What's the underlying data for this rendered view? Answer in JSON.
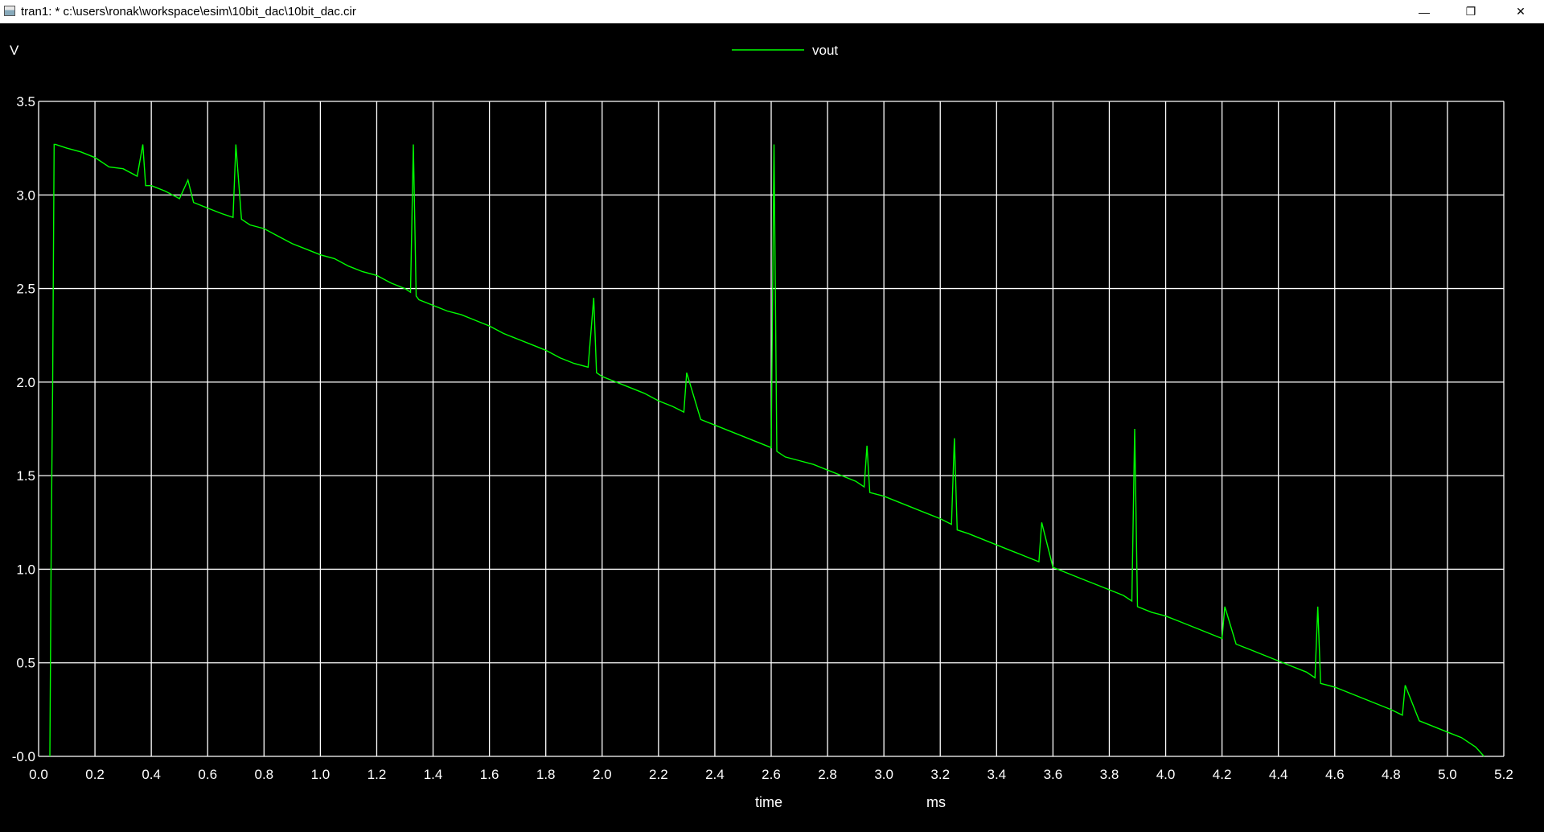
{
  "window": {
    "title": "tran1: * c:\\users\\ronak\\workspace\\esim\\10bit_dac\\10bit_dac.cir",
    "minimize_glyph": "—",
    "maximize_glyph": "❐",
    "close_glyph": "✕",
    "icon": "plot-window-icon"
  },
  "colors": {
    "background": "#000000",
    "grid": "#ffffff",
    "trace": "#00ff00",
    "text": "#ffffff"
  },
  "chart_data": {
    "type": "line",
    "ylabel": "V",
    "xlabel": "time",
    "xunit": "ms",
    "legend_position": "top-center",
    "grid": true,
    "xlim": [
      0.0,
      5.2
    ],
    "ylim": [
      0.0,
      3.5
    ],
    "x_ticks": [
      "0.0",
      "0.2",
      "0.4",
      "0.6",
      "0.8",
      "1.0",
      "1.2",
      "1.4",
      "1.6",
      "1.8",
      "2.0",
      "2.2",
      "2.4",
      "2.6",
      "2.8",
      "3.0",
      "3.2",
      "3.4",
      "3.6",
      "3.8",
      "4.0",
      "4.2",
      "4.4",
      "4.6",
      "4.8",
      "5.0",
      "5.2"
    ],
    "y_ticks": [
      "-0.0",
      "0.5",
      "1.0",
      "1.5",
      "2.0",
      "2.5",
      "3.0",
      "3.5"
    ],
    "series": [
      {
        "name": "vout",
        "color": "#00ff00",
        "x": [
          0.04,
          0.045,
          0.05,
          0.055,
          0.06,
          0.1,
          0.15,
          0.2,
          0.25,
          0.3,
          0.35,
          0.37,
          0.38,
          0.4,
          0.45,
          0.5,
          0.53,
          0.55,
          0.6,
          0.65,
          0.69,
          0.7,
          0.72,
          0.75,
          0.8,
          0.85,
          0.9,
          0.95,
          1.0,
          1.05,
          1.1,
          1.15,
          1.2,
          1.25,
          1.3,
          1.32,
          1.33,
          1.34,
          1.35,
          1.4,
          1.45,
          1.5,
          1.55,
          1.6,
          1.65,
          1.7,
          1.75,
          1.8,
          1.85,
          1.9,
          1.95,
          1.97,
          1.98,
          2.0,
          2.05,
          2.1,
          2.15,
          2.2,
          2.25,
          2.29,
          2.3,
          2.35,
          2.4,
          2.45,
          2.5,
          2.55,
          2.6,
          2.61,
          2.62,
          2.65,
          2.7,
          2.75,
          2.8,
          2.85,
          2.9,
          2.93,
          2.94,
          2.95,
          3.0,
          3.05,
          3.1,
          3.15,
          3.2,
          3.24,
          3.25,
          3.26,
          3.3,
          3.35,
          3.4,
          3.45,
          3.5,
          3.55,
          3.56,
          3.6,
          3.65,
          3.7,
          3.75,
          3.8,
          3.85,
          3.88,
          3.89,
          3.9,
          3.95,
          4.0,
          4.05,
          4.1,
          4.15,
          4.2,
          4.21,
          4.25,
          4.3,
          4.35,
          4.4,
          4.45,
          4.5,
          4.53,
          4.54,
          4.55,
          4.6,
          4.65,
          4.7,
          4.75,
          4.8,
          4.84,
          4.85,
          4.9,
          4.95,
          5.0,
          5.05,
          5.1,
          5.13
        ],
        "y": [
          0.0,
          1.2,
          2.0,
          3.27,
          3.27,
          3.25,
          3.23,
          3.2,
          3.15,
          3.14,
          3.1,
          3.27,
          3.05,
          3.05,
          3.02,
          2.98,
          3.08,
          2.96,
          2.93,
          2.9,
          2.88,
          3.27,
          2.87,
          2.84,
          2.82,
          2.78,
          2.74,
          2.71,
          2.68,
          2.66,
          2.62,
          2.59,
          2.57,
          2.53,
          2.5,
          2.48,
          3.27,
          2.46,
          2.44,
          2.41,
          2.38,
          2.36,
          2.33,
          2.3,
          2.26,
          2.23,
          2.2,
          2.17,
          2.13,
          2.1,
          2.08,
          2.45,
          2.05,
          2.03,
          2.0,
          1.97,
          1.94,
          1.9,
          1.87,
          1.84,
          2.05,
          1.8,
          1.77,
          1.74,
          1.71,
          1.68,
          1.65,
          3.27,
          1.63,
          1.6,
          1.58,
          1.56,
          1.53,
          1.5,
          1.47,
          1.44,
          1.66,
          1.41,
          1.39,
          1.36,
          1.33,
          1.3,
          1.27,
          1.24,
          1.7,
          1.21,
          1.19,
          1.16,
          1.13,
          1.1,
          1.07,
          1.04,
          1.25,
          1.01,
          0.98,
          0.95,
          0.92,
          0.89,
          0.86,
          0.83,
          1.75,
          0.8,
          0.77,
          0.75,
          0.72,
          0.69,
          0.66,
          0.63,
          0.8,
          0.6,
          0.57,
          0.54,
          0.51,
          0.48,
          0.45,
          0.42,
          0.8,
          0.39,
          0.37,
          0.34,
          0.31,
          0.28,
          0.25,
          0.22,
          0.38,
          0.19,
          0.16,
          0.13,
          0.1,
          0.05,
          0.0
        ]
      }
    ]
  }
}
